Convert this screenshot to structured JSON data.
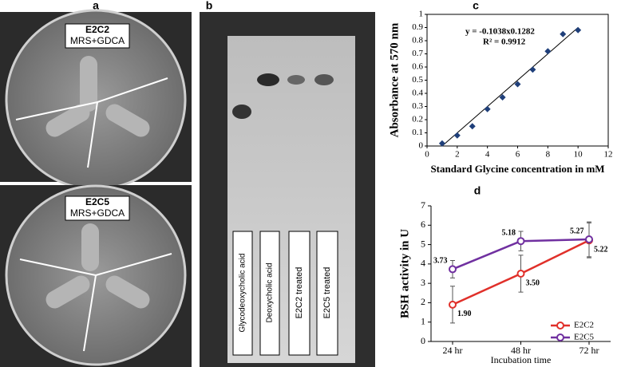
{
  "panel_labels": [
    "a",
    "b",
    "c",
    "d"
  ],
  "plates": [
    {
      "strain": "E2C2",
      "medium": "MRS+GDCA"
    },
    {
      "strain": "E2C5",
      "medium": "MRS+GDCA"
    }
  ],
  "tlc_lanes": [
    "Glycodeoxycholic acid",
    "Deoxycholic acid",
    "E2C2 treated",
    "E2C5 treated"
  ],
  "chart_data": [
    {
      "type": "scatter",
      "x_label": "Standard Glycine concentration in mM",
      "y_label": "Absorbance at 570 nm",
      "annotations": [
        "y =  -0.1038x0.1282",
        "R² = 0.9912"
      ],
      "x": [
        1,
        2,
        3,
        4,
        5,
        6,
        7,
        8,
        9,
        10
      ],
      "values": [
        0.02,
        0.08,
        0.15,
        0.28,
        0.37,
        0.47,
        0.58,
        0.72,
        0.85,
        0.88
      ],
      "color": "#1f3f7a",
      "trendline": {
        "x": [
          1,
          10
        ],
        "values": [
          0,
          0.9
        ]
      },
      "xlim": [
        0,
        12
      ],
      "xticks": [
        0,
        2,
        4,
        6,
        8,
        10,
        12
      ],
      "ylim": [
        0,
        1
      ],
      "yticks": [
        0,
        0.1,
        0.2,
        0.3,
        0.4,
        0.5,
        0.6,
        0.7,
        0.8,
        0.9,
        1
      ]
    },
    {
      "type": "line",
      "x_label": "Incubation time",
      "y_label": "BSH activity in U",
      "categories": [
        "24 hr",
        "48 hr",
        "72 hr"
      ],
      "series": [
        {
          "name": "E2C2",
          "color": "#e0302a",
          "values": [
            1.9,
            3.5,
            5.22
          ],
          "value_labels": [
            "1.90",
            "3.50",
            "5.22"
          ],
          "errors": [
            0.95,
            0.95,
            0.9
          ]
        },
        {
          "name": "E2C5",
          "color": "#7030a0",
          "values": [
            3.73,
            5.18,
            5.27
          ],
          "value_labels": [
            "3.73",
            "5.18",
            "5.27"
          ],
          "errors": [
            0.45,
            0.5,
            0.9
          ]
        }
      ],
      "ylim": [
        0,
        7
      ],
      "yticks": [
        0,
        1,
        2,
        3,
        4,
        5,
        6,
        7
      ],
      "legend": "lower right"
    }
  ]
}
